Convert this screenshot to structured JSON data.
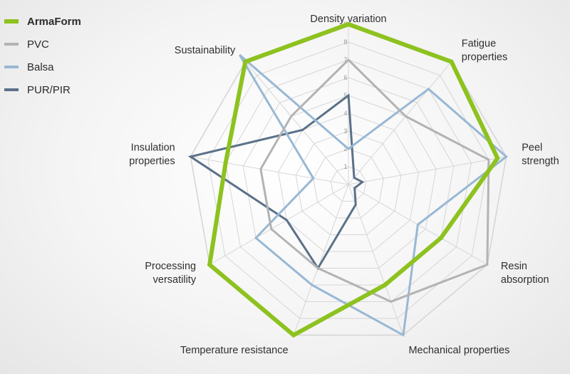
{
  "chart_data": {
    "type": "radar",
    "axes": [
      "Density variation",
      "Fatigue properties",
      "Peel strength",
      "Resin absorption",
      "Mechanical properties",
      "Temperature resistance",
      "Processing versatility",
      "Insulation properties",
      "Sustainability"
    ],
    "axis_display_lines": [
      [
        "Density variation"
      ],
      [
        "Fatigue",
        "properties"
      ],
      [
        "Peel",
        "strength"
      ],
      [
        "Resin",
        "absorption"
      ],
      [
        "Mechanical properties"
      ],
      [
        "Temperature resistance"
      ],
      [
        "Processing",
        "versatility"
      ],
      [
        "Insulation",
        "properties"
      ],
      [
        "Sustainability"
      ]
    ],
    "rlim": [
      0,
      9
    ],
    "ticks": [
      "1",
      "2",
      "3",
      "4",
      "5",
      "6",
      "7",
      "8",
      "9"
    ],
    "grid": true,
    "legend_position": "top-left",
    "series": [
      {
        "name": "ArmaForm",
        "color": "#8dc21f",
        "values": [
          9,
          9,
          8.5,
          6,
          6,
          9,
          9,
          7,
          9
        ]
      },
      {
        "name": "PVC",
        "color": "#b3b3b3",
        "values": [
          7,
          5,
          8,
          9,
          7,
          5,
          5,
          5,
          5
        ]
      },
      {
        "name": "Balsa",
        "color": "#98b8d4",
        "values": [
          2,
          7,
          9,
          4.5,
          9,
          6,
          6,
          2,
          9.5
        ]
      },
      {
        "name": "PUR/PIR",
        "color": "#5b7189",
        "values": [
          5,
          0.5,
          0.8,
          0.4,
          1.2,
          5,
          4,
          9,
          4
        ]
      }
    ]
  }
}
